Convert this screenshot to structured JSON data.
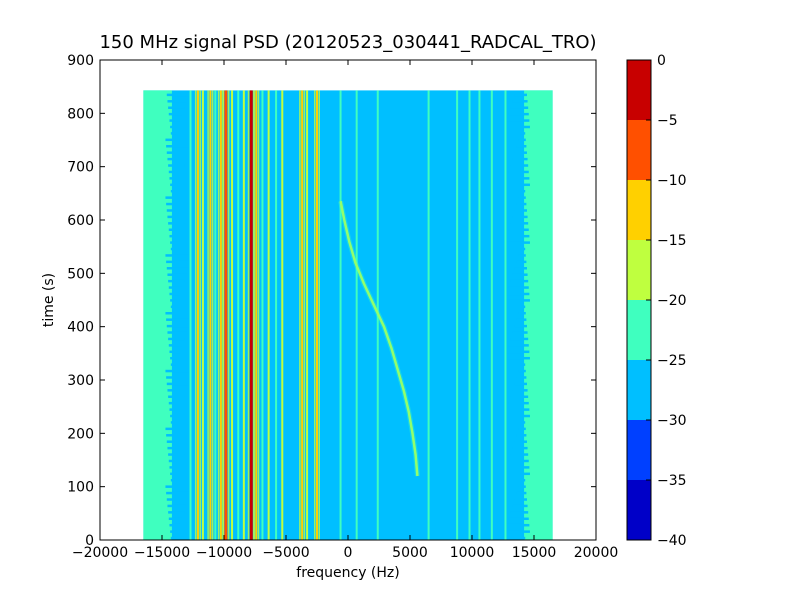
{
  "chart_data": {
    "type": "heatmap",
    "title": "150 MHz signal PSD (20120523_030441_RADCAL_TRO)",
    "xlabel": "frequency (Hz)",
    "ylabel": "time (s)",
    "xlim": [
      -20000,
      20000
    ],
    "ylim": [
      0,
      900
    ],
    "xticks": [
      -20000,
      -15000,
      -10000,
      -5000,
      0,
      5000,
      10000,
      15000,
      20000
    ],
    "yticks": [
      0,
      100,
      200,
      300,
      400,
      500,
      600,
      700,
      800,
      900
    ],
    "data_extent": {
      "x": [
        -16500,
        16500
      ],
      "y": [
        0,
        843
      ]
    },
    "background_level": -27.5,
    "band_edge_levels": {
      "outer": -22.5,
      "inner": -27.5
    },
    "colorbar": {
      "levels": [
        -40,
        -35,
        -30,
        -25,
        -20,
        -15,
        -10,
        -5,
        0
      ],
      "ticks": [
        0,
        -5,
        -10,
        -15,
        -20,
        -25,
        -30,
        -35,
        -40
      ],
      "colors": [
        "#0000c8",
        "#0040ff",
        "#00bfff",
        "#3fffbf",
        "#bfff3f",
        "#ffd000",
        "#ff5000",
        "#c80000"
      ]
    },
    "series": [
      {
        "x": -12700,
        "level": -22.5
      },
      {
        "x": -12100,
        "level": -12.5
      },
      {
        "x": -11700,
        "level": -17.5
      },
      {
        "x": -11100,
        "level": -12.5
      },
      {
        "x": -10700,
        "level": -22.5
      },
      {
        "x": -10250,
        "level": -12.5
      },
      {
        "x": -9850,
        "level": -7.5
      },
      {
        "x": -9350,
        "level": -17.5
      },
      {
        "x": -8850,
        "level": -22.5
      },
      {
        "x": -8400,
        "level": -17.5
      },
      {
        "x": -7800,
        "level": -2.5
      },
      {
        "x": -7400,
        "level": -12.5
      },
      {
        "x": -6900,
        "level": -22.5
      },
      {
        "x": -6400,
        "level": -17.5
      },
      {
        "x": -5800,
        "level": -22.5
      },
      {
        "x": -5300,
        "level": -17.5
      },
      {
        "x": -3700,
        "level": -12.5
      },
      {
        "x": -3300,
        "level": -17.5
      },
      {
        "x": -2500,
        "level": -12.5
      },
      {
        "x": -600,
        "level": -22.5
      },
      {
        "x": 700,
        "level": -22.5
      },
      {
        "x": 2400,
        "level": -22.5
      },
      {
        "x": 6500,
        "level": -22.5
      },
      {
        "x": 8800,
        "level": -22.5
      },
      {
        "x": 9800,
        "level": -22.5
      },
      {
        "x": 10600,
        "level": -22.5
      },
      {
        "x": 11600,
        "level": -22.5
      },
      {
        "x": 12700,
        "level": -22.5
      }
    ],
    "annotations": [
      {
        "type": "drift",
        "level": -17.5,
        "points": [
          [
            -600,
            635
          ],
          [
            -300,
            600
          ],
          [
            100,
            560
          ],
          [
            600,
            520
          ],
          [
            1300,
            480
          ],
          [
            2100,
            440
          ],
          [
            2900,
            400
          ],
          [
            3500,
            360
          ],
          [
            4000,
            320
          ],
          [
            4500,
            280
          ],
          [
            4900,
            240
          ],
          [
            5200,
            200
          ],
          [
            5450,
            160
          ],
          [
            5600,
            120
          ]
        ]
      }
    ]
  }
}
